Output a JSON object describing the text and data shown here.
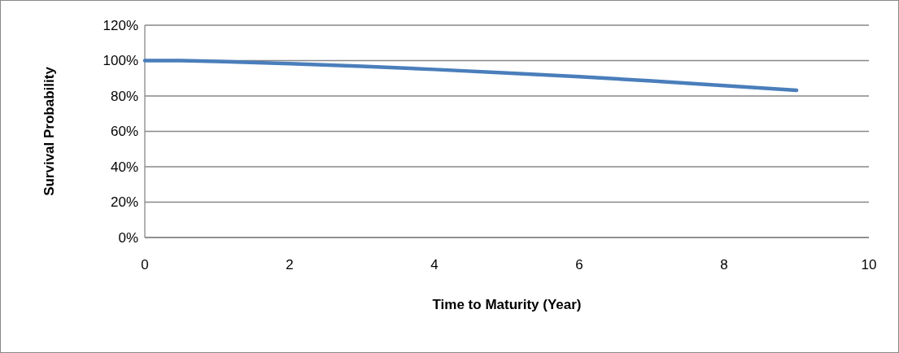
{
  "chart_data": {
    "type": "line",
    "xlabel": "Time to Maturity (Year)",
    "ylabel": "Survival Probability",
    "x": [
      0,
      0.5,
      1,
      2,
      3,
      4,
      5,
      6,
      7,
      8,
      9
    ],
    "series": [
      {
        "color": "#4a7ebb",
        "values": [
          100,
          100,
          99.5,
          98.3,
          96.8,
          95,
          93,
          90.9,
          88.5,
          85.9,
          83.2
        ]
      }
    ],
    "xlim": [
      0,
      10
    ],
    "xticks": [
      0,
      2,
      4,
      6,
      8,
      10
    ],
    "ylim": [
      0,
      120
    ],
    "yticks": [
      {
        "value": 0,
        "label": "0%"
      },
      {
        "value": 20,
        "label": "20%"
      },
      {
        "value": 40,
        "label": "40%"
      },
      {
        "value": 60,
        "label": "60%"
      },
      {
        "value": 80,
        "label": "80%"
      },
      {
        "value": 100,
        "label": "100%"
      },
      {
        "value": 120,
        "label": "120%"
      }
    ],
    "grid": "y",
    "marker": "none",
    "line_style": "solid"
  }
}
